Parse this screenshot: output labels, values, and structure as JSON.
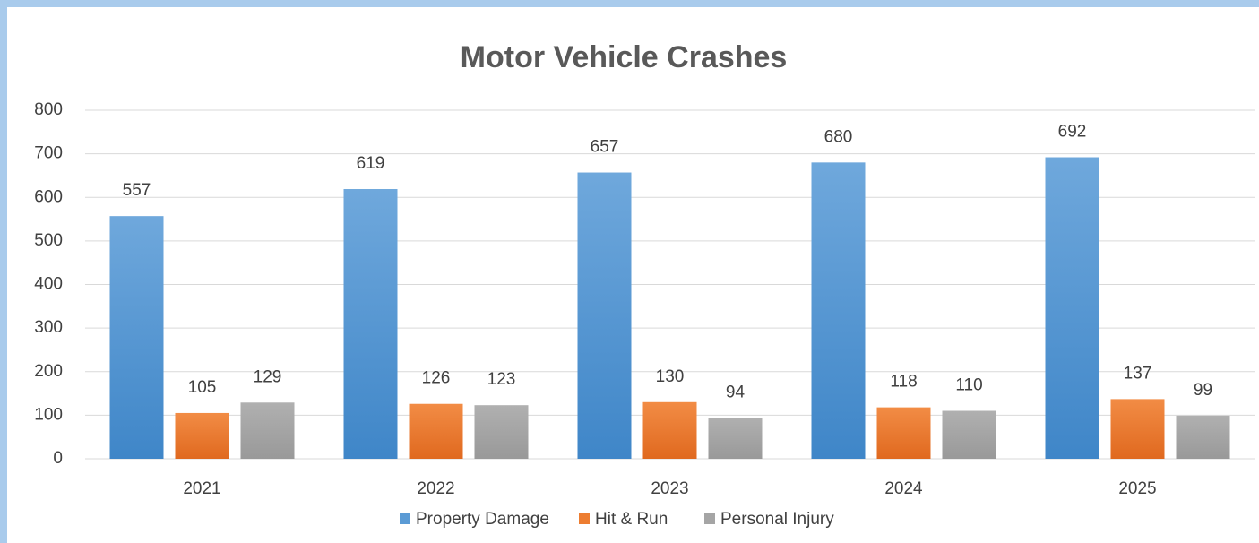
{
  "chart_data": {
    "type": "bar",
    "title": "Motor Vehicle Crashes",
    "categories": [
      "2021",
      "2022",
      "2023",
      "2024",
      "2025"
    ],
    "series": [
      {
        "name": "Property Damage",
        "color": "#5b9bd5",
        "values": [
          557,
          619,
          657,
          680,
          692
        ]
      },
      {
        "name": "Hit & Run",
        "color": "#ed7d31",
        "values": [
          105,
          126,
          130,
          118,
          137
        ]
      },
      {
        "name": "Personal Injury",
        "color": "#a5a5a5",
        "values": [
          129,
          123,
          94,
          110,
          99
        ]
      }
    ],
    "ylim": [
      0,
      800
    ],
    "yticks": [
      0,
      100,
      200,
      300,
      400,
      500,
      600,
      700,
      800
    ],
    "grid": true,
    "legend": "bottom"
  }
}
